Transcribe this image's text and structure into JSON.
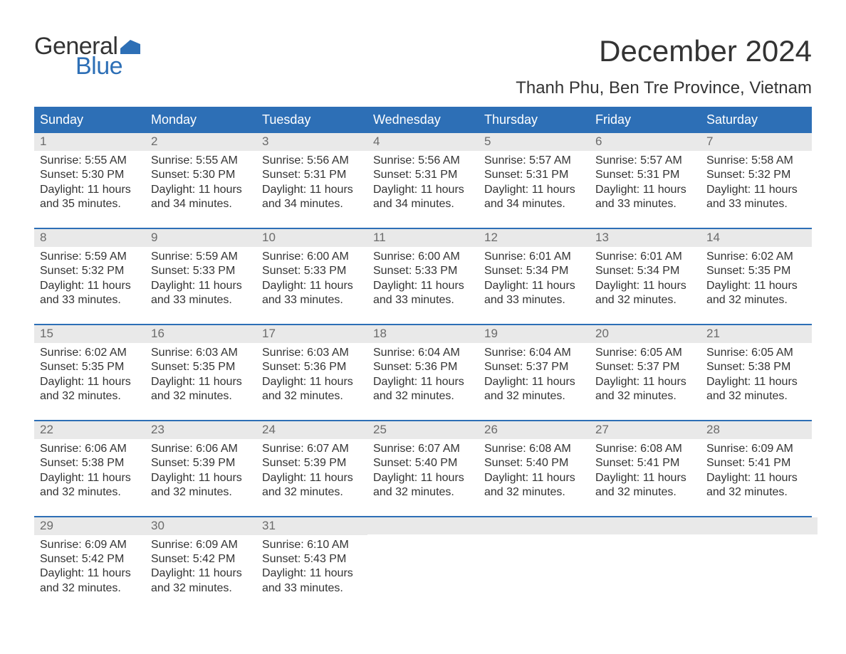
{
  "brand": {
    "word1": "General",
    "word2": "Blue",
    "flag_color": "#2d6fb6"
  },
  "title": "December 2024",
  "location": "Thanh Phu, Ben Tre Province, Vietnam",
  "colors": {
    "header_bg": "#2d6fb6",
    "row_divider": "#2d6fb6",
    "day_strip_bg": "#e9e9e9",
    "text": "#333333",
    "muted": "#6b6b6b",
    "page_bg": "#ffffff"
  },
  "typography": {
    "title_fontsize": 42,
    "location_fontsize": 24,
    "weekday_fontsize": 18,
    "daynum_fontsize": 17,
    "body_fontsize": 16,
    "font_family": "Arial"
  },
  "weekdays": [
    "Sunday",
    "Monday",
    "Tuesday",
    "Wednesday",
    "Thursday",
    "Friday",
    "Saturday"
  ],
  "weeks": [
    [
      {
        "n": "1",
        "sunrise": "Sunrise: 5:55 AM",
        "sunset": "Sunset: 5:30 PM",
        "d1": "Daylight: 11 hours",
        "d2": "and 35 minutes."
      },
      {
        "n": "2",
        "sunrise": "Sunrise: 5:55 AM",
        "sunset": "Sunset: 5:30 PM",
        "d1": "Daylight: 11 hours",
        "d2": "and 34 minutes."
      },
      {
        "n": "3",
        "sunrise": "Sunrise: 5:56 AM",
        "sunset": "Sunset: 5:31 PM",
        "d1": "Daylight: 11 hours",
        "d2": "and 34 minutes."
      },
      {
        "n": "4",
        "sunrise": "Sunrise: 5:56 AM",
        "sunset": "Sunset: 5:31 PM",
        "d1": "Daylight: 11 hours",
        "d2": "and 34 minutes."
      },
      {
        "n": "5",
        "sunrise": "Sunrise: 5:57 AM",
        "sunset": "Sunset: 5:31 PM",
        "d1": "Daylight: 11 hours",
        "d2": "and 34 minutes."
      },
      {
        "n": "6",
        "sunrise": "Sunrise: 5:57 AM",
        "sunset": "Sunset: 5:31 PM",
        "d1": "Daylight: 11 hours",
        "d2": "and 33 minutes."
      },
      {
        "n": "7",
        "sunrise": "Sunrise: 5:58 AM",
        "sunset": "Sunset: 5:32 PM",
        "d1": "Daylight: 11 hours",
        "d2": "and 33 minutes."
      }
    ],
    [
      {
        "n": "8",
        "sunrise": "Sunrise: 5:59 AM",
        "sunset": "Sunset: 5:32 PM",
        "d1": "Daylight: 11 hours",
        "d2": "and 33 minutes."
      },
      {
        "n": "9",
        "sunrise": "Sunrise: 5:59 AM",
        "sunset": "Sunset: 5:33 PM",
        "d1": "Daylight: 11 hours",
        "d2": "and 33 minutes."
      },
      {
        "n": "10",
        "sunrise": "Sunrise: 6:00 AM",
        "sunset": "Sunset: 5:33 PM",
        "d1": "Daylight: 11 hours",
        "d2": "and 33 minutes."
      },
      {
        "n": "11",
        "sunrise": "Sunrise: 6:00 AM",
        "sunset": "Sunset: 5:33 PM",
        "d1": "Daylight: 11 hours",
        "d2": "and 33 minutes."
      },
      {
        "n": "12",
        "sunrise": "Sunrise: 6:01 AM",
        "sunset": "Sunset: 5:34 PM",
        "d1": "Daylight: 11 hours",
        "d2": "and 33 minutes."
      },
      {
        "n": "13",
        "sunrise": "Sunrise: 6:01 AM",
        "sunset": "Sunset: 5:34 PM",
        "d1": "Daylight: 11 hours",
        "d2": "and 32 minutes."
      },
      {
        "n": "14",
        "sunrise": "Sunrise: 6:02 AM",
        "sunset": "Sunset: 5:35 PM",
        "d1": "Daylight: 11 hours",
        "d2": "and 32 minutes."
      }
    ],
    [
      {
        "n": "15",
        "sunrise": "Sunrise: 6:02 AM",
        "sunset": "Sunset: 5:35 PM",
        "d1": "Daylight: 11 hours",
        "d2": "and 32 minutes."
      },
      {
        "n": "16",
        "sunrise": "Sunrise: 6:03 AM",
        "sunset": "Sunset: 5:35 PM",
        "d1": "Daylight: 11 hours",
        "d2": "and 32 minutes."
      },
      {
        "n": "17",
        "sunrise": "Sunrise: 6:03 AM",
        "sunset": "Sunset: 5:36 PM",
        "d1": "Daylight: 11 hours",
        "d2": "and 32 minutes."
      },
      {
        "n": "18",
        "sunrise": "Sunrise: 6:04 AM",
        "sunset": "Sunset: 5:36 PM",
        "d1": "Daylight: 11 hours",
        "d2": "and 32 minutes."
      },
      {
        "n": "19",
        "sunrise": "Sunrise: 6:04 AM",
        "sunset": "Sunset: 5:37 PM",
        "d1": "Daylight: 11 hours",
        "d2": "and 32 minutes."
      },
      {
        "n": "20",
        "sunrise": "Sunrise: 6:05 AM",
        "sunset": "Sunset: 5:37 PM",
        "d1": "Daylight: 11 hours",
        "d2": "and 32 minutes."
      },
      {
        "n": "21",
        "sunrise": "Sunrise: 6:05 AM",
        "sunset": "Sunset: 5:38 PM",
        "d1": "Daylight: 11 hours",
        "d2": "and 32 minutes."
      }
    ],
    [
      {
        "n": "22",
        "sunrise": "Sunrise: 6:06 AM",
        "sunset": "Sunset: 5:38 PM",
        "d1": "Daylight: 11 hours",
        "d2": "and 32 minutes."
      },
      {
        "n": "23",
        "sunrise": "Sunrise: 6:06 AM",
        "sunset": "Sunset: 5:39 PM",
        "d1": "Daylight: 11 hours",
        "d2": "and 32 minutes."
      },
      {
        "n": "24",
        "sunrise": "Sunrise: 6:07 AM",
        "sunset": "Sunset: 5:39 PM",
        "d1": "Daylight: 11 hours",
        "d2": "and 32 minutes."
      },
      {
        "n": "25",
        "sunrise": "Sunrise: 6:07 AM",
        "sunset": "Sunset: 5:40 PM",
        "d1": "Daylight: 11 hours",
        "d2": "and 32 minutes."
      },
      {
        "n": "26",
        "sunrise": "Sunrise: 6:08 AM",
        "sunset": "Sunset: 5:40 PM",
        "d1": "Daylight: 11 hours",
        "d2": "and 32 minutes."
      },
      {
        "n": "27",
        "sunrise": "Sunrise: 6:08 AM",
        "sunset": "Sunset: 5:41 PM",
        "d1": "Daylight: 11 hours",
        "d2": "and 32 minutes."
      },
      {
        "n": "28",
        "sunrise": "Sunrise: 6:09 AM",
        "sunset": "Sunset: 5:41 PM",
        "d1": "Daylight: 11 hours",
        "d2": "and 32 minutes."
      }
    ],
    [
      {
        "n": "29",
        "sunrise": "Sunrise: 6:09 AM",
        "sunset": "Sunset: 5:42 PM",
        "d1": "Daylight: 11 hours",
        "d2": "and 32 minutes."
      },
      {
        "n": "30",
        "sunrise": "Sunrise: 6:09 AM",
        "sunset": "Sunset: 5:42 PM",
        "d1": "Daylight: 11 hours",
        "d2": "and 32 minutes."
      },
      {
        "n": "31",
        "sunrise": "Sunrise: 6:10 AM",
        "sunset": "Sunset: 5:43 PM",
        "d1": "Daylight: 11 hours",
        "d2": "and 33 minutes."
      },
      null,
      null,
      null,
      null
    ]
  ]
}
